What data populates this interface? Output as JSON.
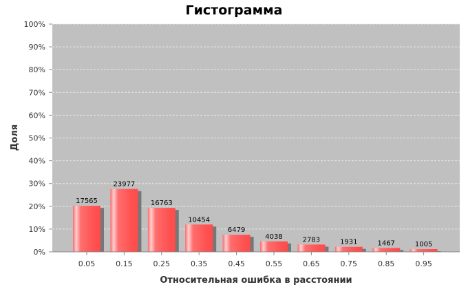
{
  "chart_data": {
    "type": "bar",
    "title": "Гистограмма",
    "xlabel": "Относительная ошибка в расстоянии",
    "ylabel": "Доля",
    "categories": [
      "0.05",
      "0.15",
      "0.25",
      "0.35",
      "0.45",
      "0.55",
      "0.65",
      "0.75",
      "0.85",
      "0.95"
    ],
    "counts": [
      "17565",
      "23977",
      "16763",
      "10454",
      "6479",
      "4038",
      "2783",
      "1931",
      "1467",
      "1005"
    ],
    "values": [
      20.2,
      27.6,
      19.3,
      12.0,
      7.5,
      4.6,
      3.2,
      2.2,
      1.7,
      1.2
    ],
    "ylim": [
      0,
      100
    ],
    "yticks": [
      "0%",
      "10%",
      "20%",
      "30%",
      "40%",
      "50%",
      "60%",
      "70%",
      "80%",
      "90%",
      "100%"
    ],
    "grid": true,
    "colors": {
      "bar": "#ff5a5a",
      "bar_highlight": "#ffd0d0",
      "shadow": "#777777",
      "plot_background": "#c0c0c0",
      "gridline": "#e8e8e8"
    }
  }
}
